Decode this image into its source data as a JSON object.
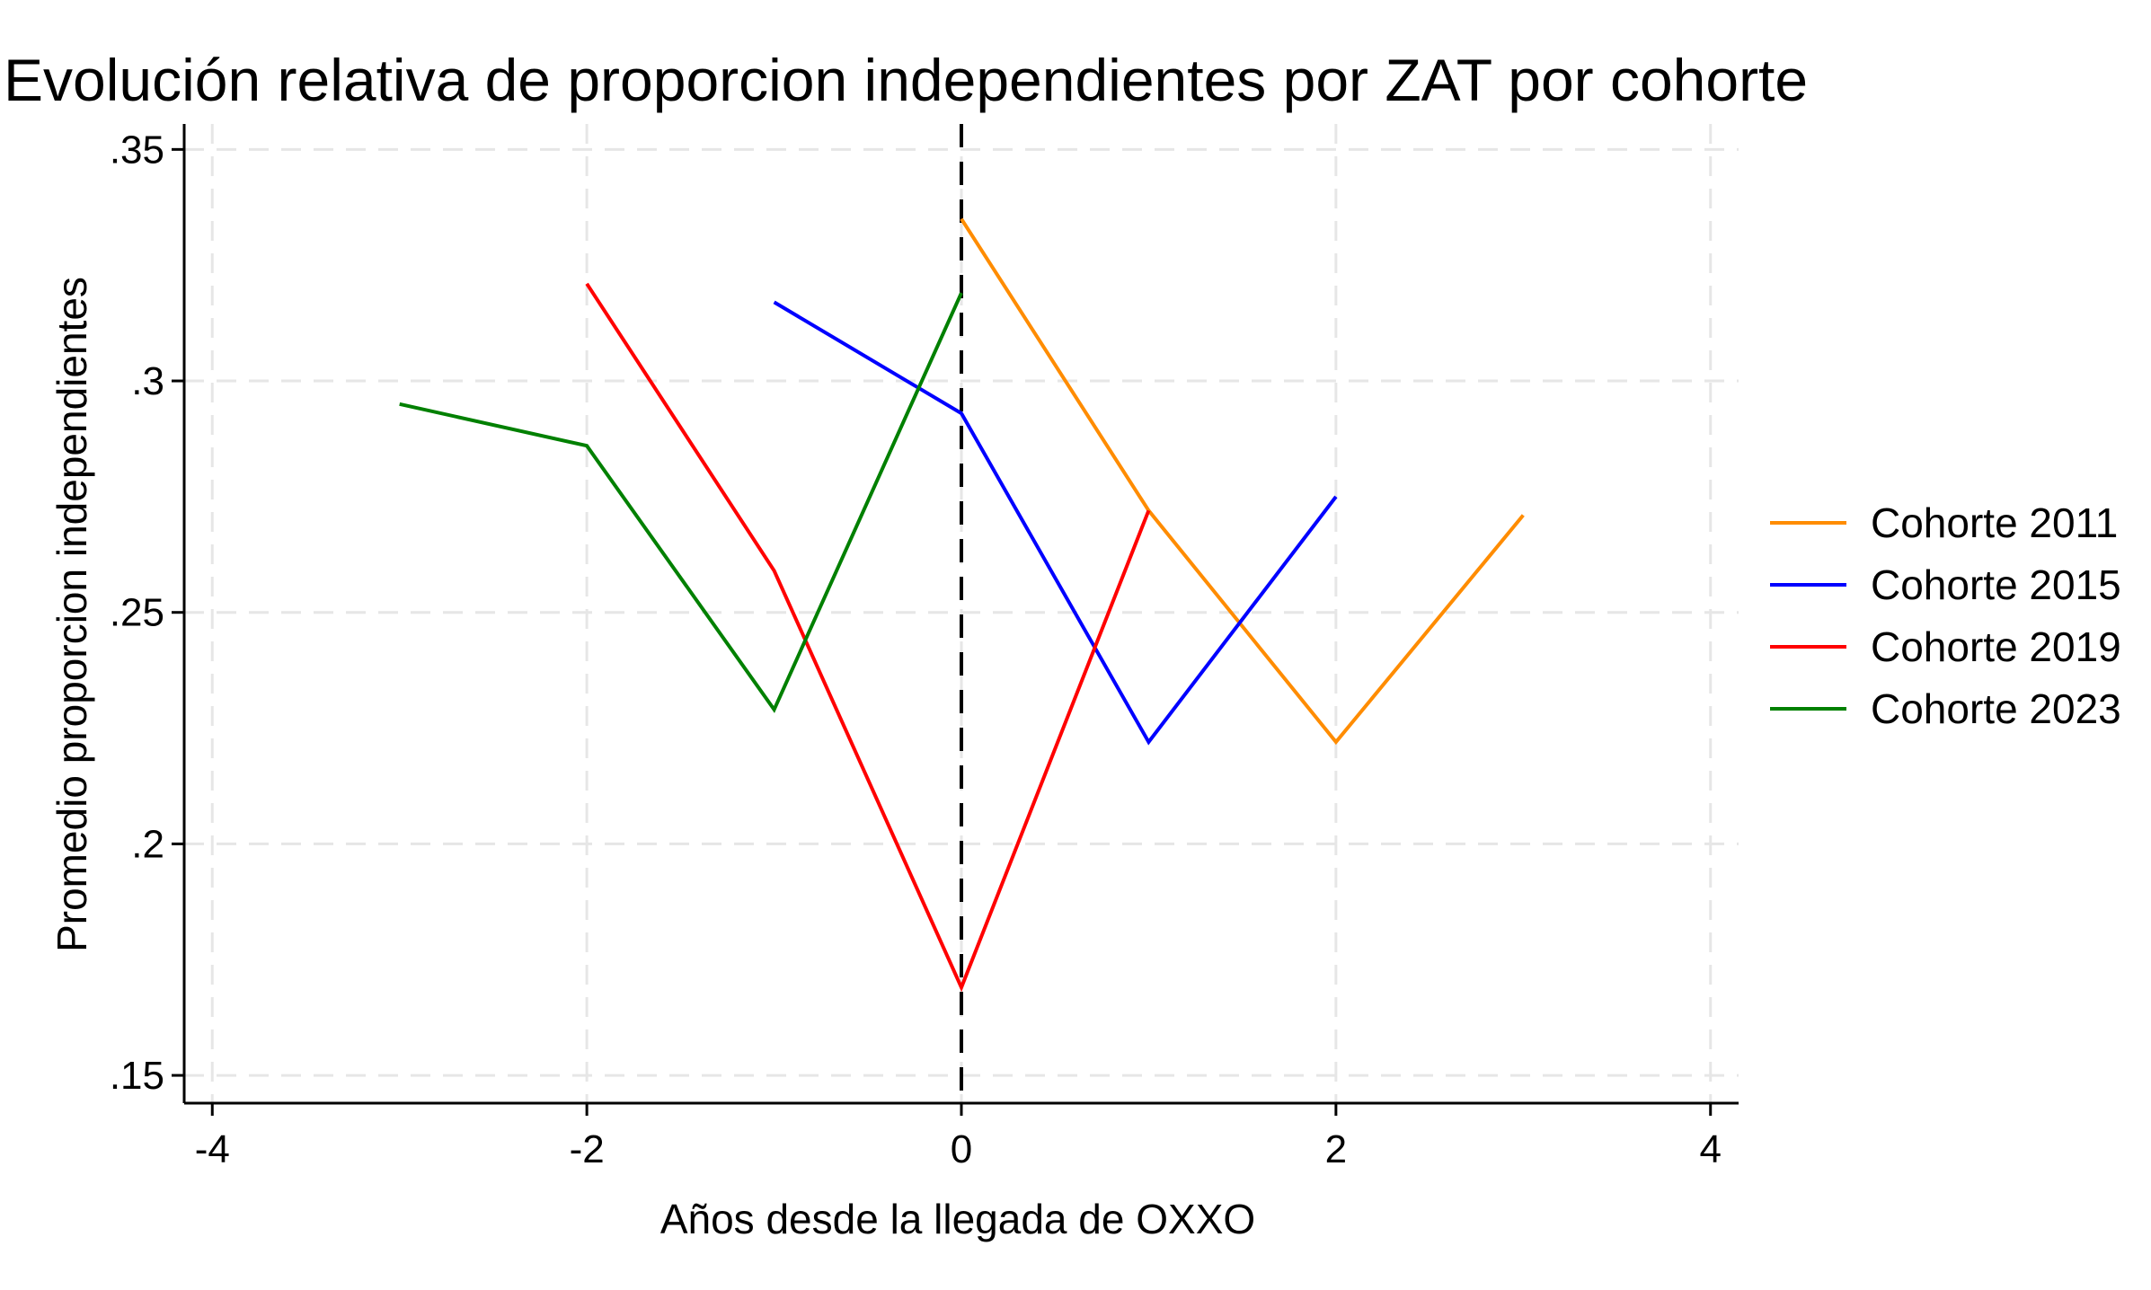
{
  "chart_data": {
    "type": "line",
    "title": "Evolución relativa de proporcion independientes por ZAT por cohorte",
    "xlabel": "Años desde la llegada de OXXO",
    "ylabel": "Promedio proporcion independientes",
    "xlim": [
      -4.15,
      4.15
    ],
    "ylim": [
      0.144,
      0.3555
    ],
    "xticks": [
      -4,
      -2,
      0,
      2,
      4
    ],
    "xtick_labels": [
      "-4",
      "-2",
      "0",
      "2",
      "4"
    ],
    "yticks": [
      0.15,
      0.2,
      0.25,
      0.3,
      0.35
    ],
    "ytick_labels": [
      ".15",
      ".2",
      ".25",
      ".3",
      ".35"
    ],
    "grid": true,
    "legend_position": "right",
    "reference_line": {
      "axis": "x",
      "value": 0,
      "style": "dashed",
      "color": "#000000"
    },
    "series": [
      {
        "name": "Cohorte 2011",
        "color": "#ff8c00",
        "x": [
          0,
          1,
          2,
          3
        ],
        "y": [
          0.335,
          0.272,
          0.222,
          0.271
        ]
      },
      {
        "name": "Cohorte 2015",
        "color": "#0000ff",
        "x": [
          -1,
          0,
          1,
          2
        ],
        "y": [
          0.317,
          0.293,
          0.222,
          0.275
        ]
      },
      {
        "name": "Cohorte 2019",
        "color": "#ff0000",
        "x": [
          -2,
          -1,
          0,
          1
        ],
        "y": [
          0.321,
          0.259,
          0.169,
          0.272
        ]
      },
      {
        "name": "Cohorte 2023",
        "color": "#008000",
        "x": [
          -3,
          -2,
          -1,
          0
        ],
        "y": [
          0.295,
          0.286,
          0.229,
          0.319
        ]
      }
    ]
  }
}
